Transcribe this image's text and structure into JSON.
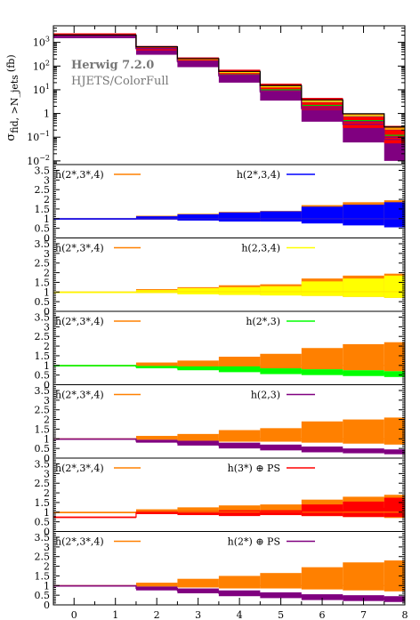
{
  "chart_data": [
    {
      "type": "histogram",
      "title": "",
      "generator": "Herwig 7.2.0",
      "subtitle": "HJETS/ColorFull",
      "ylabel": "σ_fid, >N_jets (fb)",
      "ylabel_main": "σ",
      "ylabel_sub": "fid, >N_jets",
      "ylabel_unit": "(fb)",
      "yscale": "log",
      "ylim": [
        0.007,
        5000
      ],
      "yticks": [
        {
          "v": 1000,
          "b": "10",
          "e": "3"
        },
        {
          "v": 100,
          "b": "10",
          "e": "2"
        },
        {
          "v": 10,
          "b": "10",
          "e": "1"
        },
        {
          "v": 1,
          "b": "1",
          "e": ""
        },
        {
          "v": 0.1,
          "b": "10",
          "e": "−1"
        },
        {
          "v": 0.01,
          "b": "10",
          "e": "−2"
        }
      ],
      "bins": [
        [
          -0.5,
          1.5
        ],
        [
          1.5,
          2.5
        ],
        [
          2.5,
          3.5
        ],
        [
          3.5,
          4.5
        ],
        [
          4.5,
          5.5
        ],
        [
          5.5,
          6.5
        ],
        [
          6.5,
          7.5
        ],
        [
          7.5,
          8.0
        ]
      ],
      "series": [
        {
          "name": "h(2*,3*,4)",
          "color": "#ff8000",
          "values": [
            1900,
            600,
            190,
            55,
            14,
            3.5,
            0.9,
            0.25
          ]
        },
        {
          "name": "h(2*,3,4)",
          "color": "#0000ff",
          "values": [
            1900,
            560,
            175,
            50,
            12.5,
            3.0,
            0.75,
            0.2
          ]
        },
        {
          "name": "h(2,3,4)",
          "color": "#ffff00",
          "values": [
            1900,
            580,
            180,
            52,
            13,
            3.2,
            0.8,
            0.22
          ]
        },
        {
          "name": "h(2*,3)",
          "color": "#00cc00",
          "values": [
            1900,
            560,
            165,
            45,
            10,
            2.2,
            0.5,
            0.12
          ]
        },
        {
          "name": "h(2,3)",
          "color": "#800080",
          "values": [
            1900,
            540,
            150,
            38,
            8,
            1.6,
            0.35,
            0.08
          ]
        },
        {
          "name": "h(3*) ⊕ PS",
          "color": "#ff0000",
          "values": [
            1900,
            580,
            175,
            48,
            12,
            2.8,
            0.7,
            0.2
          ]
        },
        {
          "name": "h(2*) ⊕ PS",
          "color": "#800080",
          "values": [
            1900,
            550,
            160,
            42,
            9,
            1.9,
            0.45,
            0.1
          ]
        }
      ],
      "band": {
        "lo": [
          1500,
          300,
          90,
          20,
          3.5,
          0.45,
          0.06,
          0.01
        ],
        "hi": [
          2400,
          700,
          230,
          70,
          18,
          4.5,
          1.0,
          0.3
        ]
      }
    },
    {
      "type": "ratio",
      "ylim": [
        0,
        3.8
      ],
      "yticks": [
        "0",
        "0.5",
        "1",
        "1.5",
        "2",
        "2.5",
        "3",
        "3.5"
      ],
      "xlabel": "> N_jets",
      "xlabel_main": "> N",
      "xlabel_sub": "jets",
      "xticks": [
        "0",
        "1",
        "2",
        "3",
        "4",
        "5",
        "6",
        "7",
        "8"
      ],
      "panels": [
        {
          "ref": "h(2*,3*,4)",
          "ref_color": "#ff8000",
          "cmp": "h(2*,3,4)",
          "cmp_color": "#0000ff",
          "ref_lo": [
            1.0,
            0.95,
            0.9,
            0.85,
            0.85,
            0.8,
            0.75,
            0.7
          ],
          "ref_hi": [
            1.0,
            1.15,
            1.25,
            1.35,
            1.4,
            1.7,
            1.85,
            1.95
          ],
          "cmp_lo": [
            1.0,
            0.95,
            0.9,
            0.85,
            0.85,
            0.75,
            0.65,
            0.55
          ],
          "cmp_hi": [
            1.0,
            1.12,
            1.22,
            1.32,
            1.38,
            1.62,
            1.72,
            1.85
          ],
          "cmp_line": [
            1.0,
            1.0,
            1.0,
            1.0,
            1.0,
            1.0,
            1.0,
            1.0
          ]
        },
        {
          "ref": "h(2*,3*,4)",
          "ref_color": "#ff8000",
          "cmp": "h(2,3,4)",
          "cmp_color": "#ffff00",
          "ref_lo": [
            1.0,
            0.95,
            0.9,
            0.85,
            0.85,
            0.8,
            0.75,
            0.7
          ],
          "ref_hi": [
            1.0,
            1.15,
            1.25,
            1.35,
            1.4,
            1.7,
            1.85,
            1.95
          ],
          "cmp_lo": [
            1.0,
            0.95,
            0.88,
            0.85,
            0.82,
            0.8,
            0.75,
            0.7
          ],
          "cmp_hi": [
            1.0,
            1.1,
            1.2,
            1.25,
            1.3,
            1.55,
            1.7,
            1.85
          ],
          "cmp_line": [
            1.0,
            1.0,
            1.0,
            1.0,
            1.0,
            1.0,
            1.0,
            1.0
          ]
        },
        {
          "ref": "h(2*,3*,4)",
          "ref_color": "#ff8000",
          "cmp": "h(2*,3)",
          "cmp_color": "#00ff00",
          "ref_lo": [
            1.0,
            0.95,
            0.9,
            0.85,
            0.85,
            0.8,
            0.75,
            0.7
          ],
          "ref_hi": [
            1.0,
            1.15,
            1.25,
            1.45,
            1.6,
            1.9,
            2.1,
            2.2
          ],
          "cmp_lo": [
            1.0,
            0.85,
            0.75,
            0.65,
            0.55,
            0.5,
            0.45,
            0.4
          ],
          "cmp_hi": [
            1.0,
            1.0,
            0.95,
            0.95,
            0.85,
            0.8,
            0.75,
            0.7
          ],
          "cmp_line": [
            1.0,
            0.92,
            0.85,
            0.8,
            0.72,
            0.65,
            0.6,
            0.55
          ]
        },
        {
          "ref": "h(2*,3*,4)",
          "ref_color": "#ff8000",
          "cmp": "h(2,3)",
          "cmp_color": "#800080",
          "ref_lo": [
            1.0,
            0.95,
            0.9,
            0.85,
            0.85,
            0.8,
            0.75,
            0.7
          ],
          "ref_hi": [
            1.0,
            1.15,
            1.25,
            1.45,
            1.55,
            1.9,
            2.0,
            2.1
          ],
          "cmp_lo": [
            1.0,
            0.8,
            0.65,
            0.5,
            0.4,
            0.3,
            0.25,
            0.2
          ],
          "cmp_hi": [
            1.0,
            0.95,
            0.9,
            0.8,
            0.7,
            0.6,
            0.5,
            0.45
          ],
          "cmp_line": [
            1.0,
            0.88,
            0.78,
            0.65,
            0.55,
            0.45,
            0.38,
            0.32
          ]
        },
        {
          "ref": "h(2*,3*,4)",
          "ref_color": "#ff8000",
          "cmp": "h(3*) ⊕ PS",
          "cmp_color": "#ff0000",
          "ref_lo": [
            1.0,
            0.95,
            0.9,
            0.85,
            0.85,
            0.8,
            0.75,
            0.7
          ],
          "ref_hi": [
            1.0,
            1.15,
            1.25,
            1.35,
            1.4,
            1.65,
            1.8,
            1.9
          ],
          "cmp_lo": [
            0.75,
            0.9,
            0.85,
            0.8,
            0.85,
            0.8,
            0.75,
            0.75
          ],
          "cmp_hi": [
            0.75,
            1.05,
            1.05,
            1.1,
            1.1,
            1.4,
            1.55,
            1.75
          ],
          "cmp_line": [
            0.75,
            0.98,
            0.95,
            0.95,
            0.98,
            1.05,
            1.1,
            1.2
          ]
        },
        {
          "ref": "h(2*,3*,4)",
          "ref_color": "#ff8000",
          "cmp": "h(2*) ⊕ PS",
          "cmp_color": "#800080",
          "ref_lo": [
            1.0,
            0.95,
            0.9,
            0.85,
            0.85,
            0.8,
            0.75,
            0.7
          ],
          "ref_hi": [
            1.0,
            1.15,
            1.35,
            1.5,
            1.65,
            1.95,
            2.2,
            2.3
          ],
          "cmp_lo": [
            1.0,
            0.75,
            0.6,
            0.45,
            0.35,
            0.25,
            0.2,
            0.15
          ],
          "cmp_hi": [
            1.0,
            0.95,
            0.85,
            0.75,
            0.65,
            0.55,
            0.5,
            0.45
          ],
          "cmp_line": [
            1.0,
            0.85,
            0.72,
            0.6,
            0.5,
            0.42,
            0.35,
            0.3
          ]
        }
      ]
    }
  ]
}
